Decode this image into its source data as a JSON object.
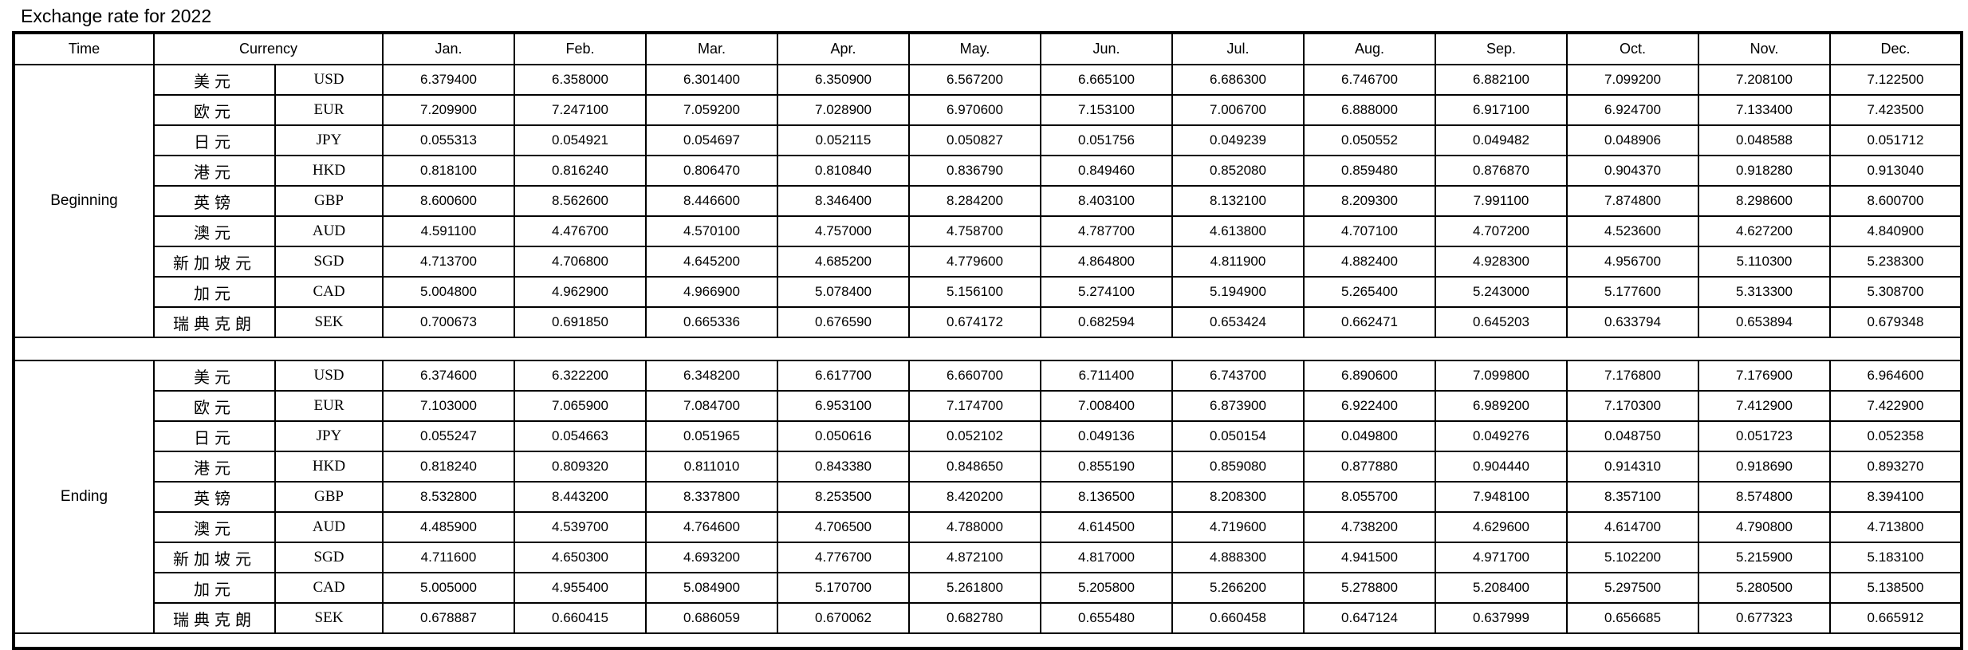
{
  "title": "Exchange rate for 2022",
  "table": {
    "shaded_column_color": "#EDEBE0",
    "border_color": "#000000",
    "headers": {
      "time": "Time",
      "currency": "Currency",
      "months": [
        "Jan.",
        "Feb.",
        "Mar.",
        "Apr.",
        "May.",
        "Jun.",
        "Jul.",
        "Aug.",
        "Sep.",
        "Oct.",
        "Nov.",
        "Dec."
      ]
    },
    "sections": [
      {
        "time_label": "Beginning",
        "rows": [
          {
            "name_cn": "美元",
            "code": "USD",
            "values": [
              "6.379400",
              "6.358000",
              "6.301400",
              "6.350900",
              "6.567200",
              "6.665100",
              "6.686300",
              "6.746700",
              "6.882100",
              "7.099200",
              "7.208100",
              "7.122500"
            ]
          },
          {
            "name_cn": "欧元",
            "code": "EUR",
            "values": [
              "7.209900",
              "7.247100",
              "7.059200",
              "7.028900",
              "6.970600",
              "7.153100",
              "7.006700",
              "6.888000",
              "6.917100",
              "6.924700",
              "7.133400",
              "7.423500"
            ]
          },
          {
            "name_cn": "日元",
            "code": "JPY",
            "values": [
              "0.055313",
              "0.054921",
              "0.054697",
              "0.052115",
              "0.050827",
              "0.051756",
              "0.049239",
              "0.050552",
              "0.049482",
              "0.048906",
              "0.048588",
              "0.051712"
            ]
          },
          {
            "name_cn": "港元",
            "code": "HKD",
            "values": [
              "0.818100",
              "0.816240",
              "0.806470",
              "0.810840",
              "0.836790",
              "0.849460",
              "0.852080",
              "0.859480",
              "0.876870",
              "0.904370",
              "0.918280",
              "0.913040"
            ]
          },
          {
            "name_cn": "英镑",
            "code": "GBP",
            "values": [
              "8.600600",
              "8.562600",
              "8.446600",
              "8.346400",
              "8.284200",
              "8.403100",
              "8.132100",
              "8.209300",
              "7.991100",
              "7.874800",
              "8.298600",
              "8.600700"
            ]
          },
          {
            "name_cn": "澳元",
            "code": "AUD",
            "values": [
              "4.591100",
              "4.476700",
              "4.570100",
              "4.757000",
              "4.758700",
              "4.787700",
              "4.613800",
              "4.707100",
              "4.707200",
              "4.523600",
              "4.627200",
              "4.840900"
            ]
          },
          {
            "name_cn": "新加坡元",
            "code": "SGD",
            "values": [
              "4.713700",
              "4.706800",
              "4.645200",
              "4.685200",
              "4.779600",
              "4.864800",
              "4.811900",
              "4.882400",
              "4.928300",
              "4.956700",
              "5.110300",
              "5.238300"
            ]
          },
          {
            "name_cn": "加元",
            "code": "CAD",
            "values": [
              "5.004800",
              "4.962900",
              "4.966900",
              "5.078400",
              "5.156100",
              "5.274100",
              "5.194900",
              "5.265400",
              "5.243000",
              "5.177600",
              "5.313300",
              "5.308700"
            ]
          },
          {
            "name_cn": "瑞典克朗",
            "code": "SEK",
            "values": [
              "0.700673",
              "0.691850",
              "0.665336",
              "0.676590",
              "0.674172",
              "0.682594",
              "0.653424",
              "0.662471",
              "0.645203",
              "0.633794",
              "0.653894",
              "0.679348"
            ]
          }
        ]
      },
      {
        "time_label": "Ending",
        "rows": [
          {
            "name_cn": "美元",
            "code": "USD",
            "values": [
              "6.374600",
              "6.322200",
              "6.348200",
              "6.617700",
              "6.660700",
              "6.711400",
              "6.743700",
              "6.890600",
              "7.099800",
              "7.176800",
              "7.176900",
              "6.964600"
            ]
          },
          {
            "name_cn": "欧元",
            "code": "EUR",
            "values": [
              "7.103000",
              "7.065900",
              "7.084700",
              "6.953100",
              "7.174700",
              "7.008400",
              "6.873900",
              "6.922400",
              "6.989200",
              "7.170300",
              "7.412900",
              "7.422900"
            ]
          },
          {
            "name_cn": "日元",
            "code": "JPY",
            "values": [
              "0.055247",
              "0.054663",
              "0.051965",
              "0.050616",
              "0.052102",
              "0.049136",
              "0.050154",
              "0.049800",
              "0.049276",
              "0.048750",
              "0.051723",
              "0.052358"
            ]
          },
          {
            "name_cn": "港元",
            "code": "HKD",
            "values": [
              "0.818240",
              "0.809320",
              "0.811010",
              "0.843380",
              "0.848650",
              "0.855190",
              "0.859080",
              "0.877880",
              "0.904440",
              "0.914310",
              "0.918690",
              "0.893270"
            ]
          },
          {
            "name_cn": "英镑",
            "code": "GBP",
            "values": [
              "8.532800",
              "8.443200",
              "8.337800",
              "8.253500",
              "8.420200",
              "8.136500",
              "8.208300",
              "8.055700",
              "7.948100",
              "8.357100",
              "8.574800",
              "8.394100"
            ]
          },
          {
            "name_cn": "澳元",
            "code": "AUD",
            "values": [
              "4.485900",
              "4.539700",
              "4.764600",
              "4.706500",
              "4.788000",
              "4.614500",
              "4.719600",
              "4.738200",
              "4.629600",
              "4.614700",
              "4.790800",
              "4.713800"
            ]
          },
          {
            "name_cn": "新加坡元",
            "code": "SGD",
            "values": [
              "4.711600",
              "4.650300",
              "4.693200",
              "4.776700",
              "4.872100",
              "4.817000",
              "4.888300",
              "4.941500",
              "4.971700",
              "5.102200",
              "5.215900",
              "5.183100"
            ]
          },
          {
            "name_cn": "加元",
            "code": "CAD",
            "values": [
              "5.005000",
              "4.955400",
              "5.084900",
              "5.170700",
              "5.261800",
              "5.205800",
              "5.266200",
              "5.278800",
              "5.208400",
              "5.297500",
              "5.280500",
              "5.138500"
            ]
          },
          {
            "name_cn": "瑞典克朗",
            "code": "SEK",
            "values": [
              "0.678887",
              "0.660415",
              "0.686059",
              "0.670062",
              "0.682780",
              "0.655480",
              "0.660458",
              "0.647124",
              "0.637999",
              "0.656685",
              "0.677323",
              "0.665912"
            ]
          }
        ]
      }
    ]
  }
}
